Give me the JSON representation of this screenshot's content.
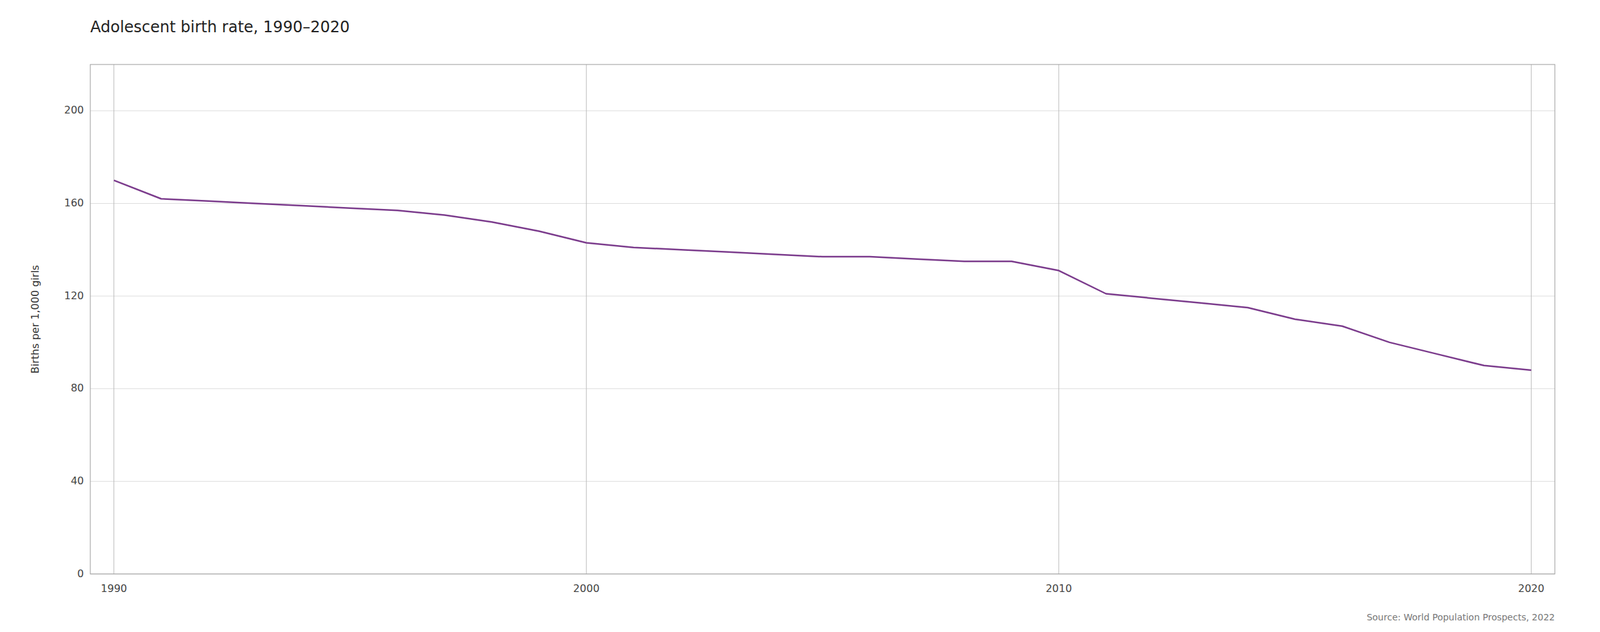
{
  "chart_data": {
    "type": "line",
    "title": "Adolescent birth rate, 1990–2020",
    "ylabel": "Births per 1,000 girls",
    "source": "Source: World Population Prospects, 2022",
    "x": [
      1990,
      1991,
      1992,
      1993,
      1994,
      1995,
      1996,
      1997,
      1998,
      1999,
      2000,
      2001,
      2002,
      2003,
      2004,
      2005,
      2006,
      2007,
      2008,
      2009,
      2010,
      2011,
      2012,
      2013,
      2014,
      2015,
      2016,
      2017,
      2018,
      2019,
      2020
    ],
    "values": [
      170,
      162,
      161,
      160,
      159,
      158,
      157,
      155,
      152,
      148,
      143,
      141,
      140,
      139,
      138,
      137,
      137,
      136,
      135,
      135,
      131,
      121,
      119,
      117,
      115,
      110,
      107,
      100,
      95,
      90,
      88
    ],
    "color": "#7b3b8c",
    "xlim": [
      1989.5,
      2020.5
    ],
    "xticks": [
      1990,
      2000,
      2010,
      2020
    ],
    "ylim": [
      0,
      220
    ],
    "yticks": [
      0,
      40,
      80,
      120,
      160,
      200
    ],
    "grid": true
  }
}
